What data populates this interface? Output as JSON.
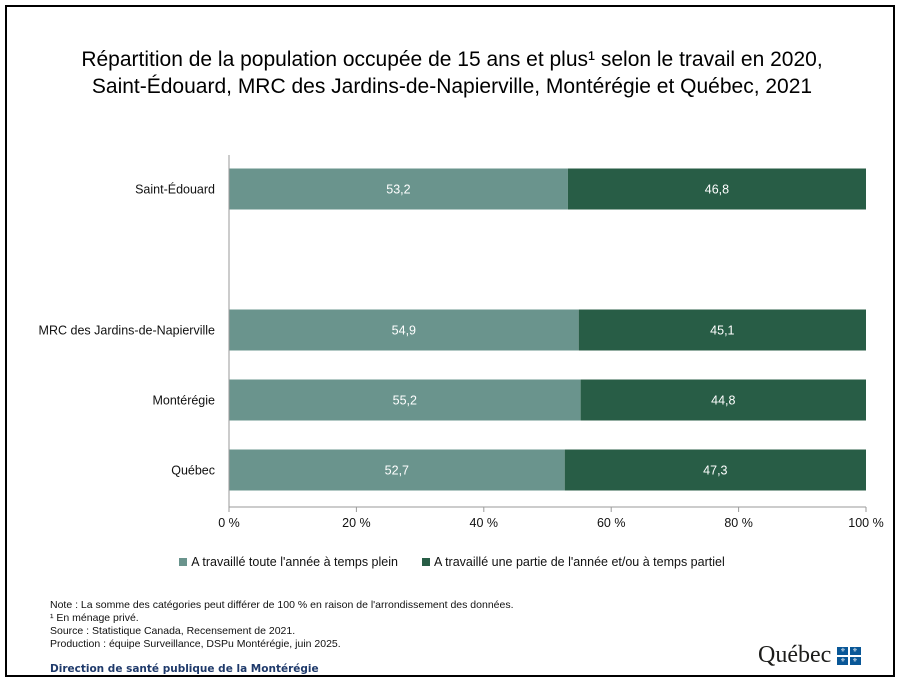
{
  "chart_data": {
    "type": "bar",
    "orientation": "horizontal",
    "stacked": true,
    "title_lines": [
      "Répartition de la population occupée de 15 ans et plus¹ selon le travail en 2020,",
      "Saint-Édouard, MRC des Jardins-de-Napierville, Montérégie et Québec, 2021"
    ],
    "categories": [
      "Saint-Édouard",
      "MRC des Jardins-de-Napierville",
      "Montérégie",
      "Québec"
    ],
    "series": [
      {
        "name": "A travaillé toute l'année à temps plein",
        "values": [
          53.2,
          54.9,
          55.2,
          52.7
        ],
        "labels": [
          "53,2",
          "54,9",
          "55,2",
          "52,7"
        ],
        "color": "#6a948d"
      },
      {
        "name": "A travaillé une partie de l'année et/ou à temps partiel",
        "values": [
          46.8,
          45.1,
          44.8,
          47.3
        ],
        "labels": [
          "46,8",
          "45,1",
          "44,8",
          "47,3"
        ],
        "color": "#285d46"
      }
    ],
    "xlim": [
      0,
      100
    ],
    "x_ticks": [
      0,
      20,
      40,
      60,
      80,
      100
    ],
    "x_tick_labels": [
      "0 %",
      "20 %",
      "40 %",
      "60 %",
      "80 %",
      "100 %"
    ],
    "grid": false,
    "legend_position": "bottom"
  },
  "notes": [
    "Note : La somme des catégories peut différer de 100 % en raison de l'arrondissement des données.",
    "¹ En ménage privé.",
    "Source : Statistique Canada, Recensement de 2021.",
    "Production : équipe Surveillance, DSPu Montérégie, juin 2025."
  ],
  "department": "Direction de santé publique de la Montérégie",
  "logo": {
    "word": "Québec",
    "flag_icon": "fleurdelise-flag-icon",
    "flag_color": "#095797"
  }
}
